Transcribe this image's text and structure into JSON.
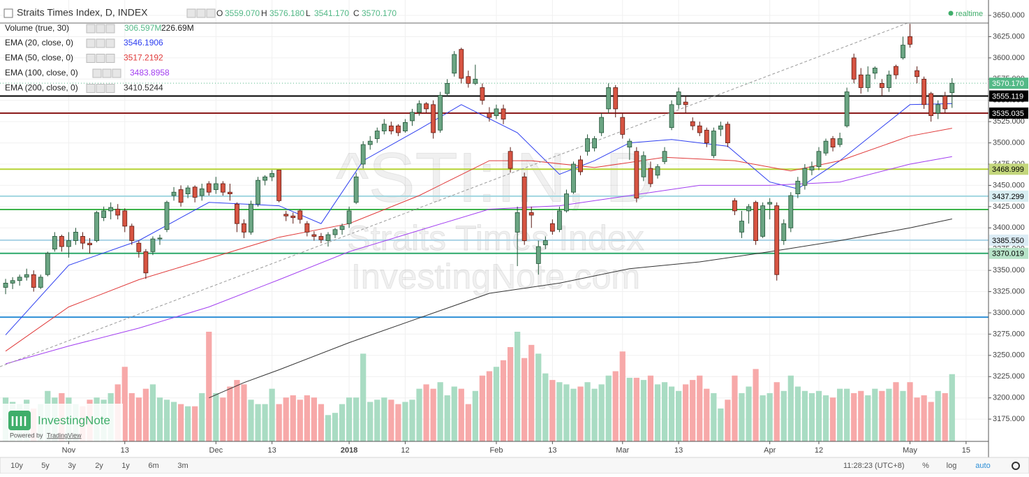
{
  "chart_data": {
    "type": "candlestick",
    "legend": {
      "title": "Straits Times Index, D, INDEX",
      "realtime": "realtime",
      "ohlc": [
        {
          "key": "O",
          "label": "3559.070"
        },
        {
          "key": "H",
          "label": "3576.180"
        },
        {
          "key": "L",
          "label": "3541.170"
        },
        {
          "key": "C",
          "label": "3570.170"
        }
      ],
      "ohlc_color": "#53b987"
    },
    "watermark": [
      "^STI:IN, D",
      "Straits Times Index",
      "InvestingNote.com"
    ],
    "logo": {
      "name": "InvestingNote",
      "powered_by": "Powered by",
      "link": "TradingView"
    },
    "xlim": [
      -0.8,
      140.2
    ],
    "xticks": [
      {
        "value": 9,
        "label": "Nov"
      },
      {
        "value": 17,
        "label": "13"
      },
      {
        "value": 30,
        "label": "Dec"
      },
      {
        "value": 38,
        "label": "13"
      },
      {
        "value": 49,
        "label": "2018"
      },
      {
        "value": 57,
        "label": "12"
      },
      {
        "value": 70,
        "label": "Feb"
      },
      {
        "value": 78,
        "label": "13"
      },
      {
        "value": 88,
        "label": "Mar"
      },
      {
        "value": 96,
        "label": "13"
      },
      {
        "value": 109,
        "label": "Apr"
      },
      {
        "value": 116,
        "label": "12"
      },
      {
        "value": 129,
        "label": "May"
      },
      {
        "value": 137,
        "label": "15"
      }
    ],
    "ylim": [
      3148.8,
      3668.1
    ],
    "yticks": [
      {
        "value": 3175,
        "label": "3175.000"
      },
      {
        "value": 3200,
        "label": "3200.000"
      },
      {
        "value": 3225,
        "label": "3225.000"
      },
      {
        "value": 3250,
        "label": "3250.000"
      },
      {
        "value": 3275,
        "label": "3275.000"
      },
      {
        "value": 3300,
        "label": "3300.000"
      },
      {
        "value": 3325,
        "label": "3325.000"
      },
      {
        "value": 3350,
        "label": "3350.000"
      },
      {
        "value": 3375,
        "label": "3375.000"
      },
      {
        "value": 3400,
        "label": "3400.000"
      },
      {
        "value": 3425,
        "label": "3425.000"
      },
      {
        "value": 3450,
        "label": "3450.000"
      },
      {
        "value": 3475,
        "label": "3475.000"
      },
      {
        "value": 3500,
        "label": "3500.000"
      },
      {
        "value": 3525,
        "label": "3525.000"
      },
      {
        "value": 3550,
        "label": "3550.000"
      },
      {
        "value": 3575,
        "label": "3575.000"
      },
      {
        "value": 3600,
        "label": "3600.000"
      },
      {
        "value": 3625,
        "label": "3625.000"
      },
      {
        "value": 3650,
        "label": "3650.000"
      }
    ],
    "grid": true,
    "up_color": "#6ba583",
    "up_border": "#225437",
    "down_color": "#d75442",
    "down_border": "#5b1a13",
    "open": [
      3330,
      3335,
      3338,
      3342,
      3345,
      3330,
      3345,
      3375,
      3390,
      3378,
      3385,
      3390,
      3382,
      3385,
      3412,
      3420,
      3422,
      3420,
      3402,
      3382,
      3372,
      3372,
      3387,
      3398,
      3438,
      3445,
      3440,
      3448,
      3438,
      3452,
      3445,
      3452,
      3442,
      3428,
      3405,
      3395,
      3428,
      3456,
      3460,
      3468,
      3416,
      3414,
      3420,
      3405,
      3392,
      3390,
      3385,
      3392,
      3398,
      3405,
      3430,
      3475,
      3498,
      3505,
      3514,
      3520,
      3520,
      3514,
      3526,
      3536,
      3546,
      3545,
      3515,
      3558,
      3582,
      3610,
      3578,
      3570,
      3565,
      3535,
      3532,
      3540,
      3490,
      3395,
      3460,
      3418,
      3358,
      3380,
      3405,
      3398,
      3420,
      3442,
      3480,
      3490,
      3494,
      3512,
      3540,
      3565,
      3530,
      3495,
      3490,
      3460,
      3470,
      3462,
      3478,
      3518,
      3545,
      3548,
      3525,
      3520,
      3515,
      3485,
      3516,
      3522,
      3432,
      3395,
      3420,
      3430,
      3390,
      3428,
      3426,
      3385,
      3400,
      3440,
      3450,
      3468,
      3472,
      3488,
      3505,
      3498,
      3520,
      3600,
      3580,
      3565,
      3582,
      3570,
      3565,
      3590,
      3600,
      3625,
      3585,
      3575,
      3558,
      3535,
      3555,
      3559.07
    ],
    "high": [
      3340,
      3342,
      3345,
      3352,
      3350,
      3345,
      3372,
      3395,
      3392,
      3395,
      3400,
      3395,
      3388,
      3420,
      3425,
      3430,
      3428,
      3423,
      3405,
      3385,
      3375,
      3390,
      3392,
      3432,
      3448,
      3450,
      3450,
      3450,
      3452,
      3455,
      3460,
      3455,
      3452,
      3430,
      3410,
      3432,
      3460,
      3462,
      3468,
      3468,
      3420,
      3418,
      3422,
      3408,
      3396,
      3394,
      3395,
      3400,
      3405,
      3425,
      3465,
      3502,
      3508,
      3518,
      3528,
      3525,
      3522,
      3528,
      3540,
      3550,
      3548,
      3550,
      3560,
      3575,
      3608,
      3612,
      3585,
      3592,
      3570,
      3542,
      3545,
      3545,
      3495,
      3425,
      3465,
      3425,
      3385,
      3390,
      3410,
      3425,
      3445,
      3478,
      3485,
      3510,
      3508,
      3535,
      3570,
      3568,
      3535,
      3505,
      3495,
      3490,
      3478,
      3475,
      3495,
      3550,
      3565,
      3555,
      3530,
      3525,
      3518,
      3518,
      3525,
      3525,
      3435,
      3420,
      3428,
      3432,
      3430,
      3435,
      3430,
      3410,
      3442,
      3460,
      3475,
      3478,
      3495,
      3505,
      3508,
      3512,
      3565,
      3605,
      3588,
      3590,
      3590,
      3575,
      3585,
      3592,
      3625,
      3640,
      3590,
      3578,
      3560,
      3550,
      3560,
      3576.18
    ],
    "low": [
      3322,
      3328,
      3332,
      3338,
      3325,
      3328,
      3343,
      3372,
      3372,
      3365,
      3380,
      3375,
      3370,
      3383,
      3408,
      3410,
      3410,
      3395,
      3380,
      3365,
      3340,
      3368,
      3380,
      3395,
      3432,
      3425,
      3435,
      3430,
      3432,
      3438,
      3440,
      3438,
      3432,
      3395,
      3388,
      3392,
      3425,
      3450,
      3455,
      3430,
      3408,
      3405,
      3405,
      3390,
      3385,
      3382,
      3378,
      3388,
      3392,
      3400,
      3428,
      3470,
      3492,
      3500,
      3510,
      3510,
      3508,
      3512,
      3520,
      3532,
      3535,
      3505,
      3512,
      3555,
      3578,
      3570,
      3565,
      3568,
      3545,
      3525,
      3528,
      3522,
      3465,
      3355,
      3380,
      3400,
      3345,
      3375,
      3392,
      3395,
      3418,
      3440,
      3462,
      3485,
      3490,
      3508,
      3535,
      3530,
      3505,
      3480,
      3430,
      3455,
      3448,
      3458,
      3475,
      3515,
      3540,
      3535,
      3515,
      3508,
      3495,
      3482,
      3508,
      3495,
      3415,
      3388,
      3405,
      3380,
      3388,
      3410,
      3338,
      3380,
      3395,
      3435,
      3445,
      3462,
      3468,
      3485,
      3490,
      3495,
      3518,
      3570,
      3558,
      3560,
      3575,
      3555,
      3560,
      3575,
      3598,
      3612,
      3570,
      3540,
      3525,
      3528,
      3535,
      3541.17
    ],
    "close": [
      3335,
      3338,
      3342,
      3345,
      3330,
      3342,
      3370,
      3390,
      3378,
      3385,
      3395,
      3382,
      3380,
      3418,
      3420,
      3424,
      3415,
      3402,
      3385,
      3372,
      3347,
      3387,
      3388,
      3430,
      3442,
      3430,
      3447,
      3436,
      3446,
      3442,
      3452,
      3442,
      3440,
      3405,
      3395,
      3428,
      3456,
      3460,
      3464,
      3432,
      3414,
      3412,
      3410,
      3395,
      3390,
      3386,
      3392,
      3398,
      3402,
      3420,
      3460,
      3498,
      3502,
      3514,
      3522,
      3514,
      3512,
      3524,
      3536,
      3546,
      3540,
      3512,
      3556,
      3570,
      3604,
      3576,
      3570,
      3575,
      3550,
      3530,
      3540,
      3528,
      3470,
      3418,
      3385,
      3415,
      3378,
      3385,
      3396,
      3420,
      3440,
      3475,
      3466,
      3505,
      3505,
      3530,
      3565,
      3540,
      3510,
      3502,
      3435,
      3485,
      3452,
      3472,
      3490,
      3545,
      3560,
      3545,
      3520,
      3512,
      3500,
      3514,
      3520,
      3500,
      3420,
      3408,
      3425,
      3385,
      3426,
      3430,
      3345,
      3405,
      3438,
      3455,
      3470,
      3472,
      3490,
      3502,
      3495,
      3505,
      3560,
      3575,
      3565,
      3580,
      3588,
      3565,
      3580,
      3580,
      3615,
      3616,
      3578,
      3545,
      3532,
      3545,
      3540,
      3570.17
    ],
    "volume": {
      "name": "Volume (true, 30)",
      "value_label": "306.597M",
      "ma_label": "226.69M",
      "label_colors": [
        "#53b987",
        "#222"
      ],
      "up_color": "#a9dcc3",
      "down_color": "#f7a9a9",
      "values": [
        200,
        180,
        170,
        190,
        150,
        170,
        230,
        200,
        220,
        200,
        170,
        160,
        190,
        200,
        190,
        220,
        260,
        340,
        220,
        200,
        240,
        260,
        200,
        190,
        180,
        170,
        160,
        160,
        220,
        500,
        220,
        200,
        250,
        280,
        260,
        190,
        170,
        170,
        240,
        170,
        200,
        210,
        190,
        210,
        200,
        170,
        120,
        130,
        170,
        200,
        200,
        400,
        180,
        190,
        200,
        190,
        170,
        180,
        190,
        240,
        260,
        240,
        270,
        210,
        250,
        240,
        170,
        230,
        300,
        320,
        340,
        370,
        430,
        500,
        380,
        440,
        400,
        310,
        280,
        270,
        260,
        240,
        250,
        270,
        240,
        260,
        300,
        320,
        410,
        290,
        290,
        280,
        300,
        260,
        270,
        250,
        230,
        260,
        280,
        300,
        240,
        220,
        150,
        190,
        300,
        220,
        250,
        330,
        210,
        220,
        270,
        230,
        300,
        250,
        230,
        220,
        230,
        210,
        200,
        240,
        240,
        220,
        230,
        210,
        240,
        230,
        240,
        270,
        230,
        270,
        200,
        210,
        180,
        230,
        220,
        306.597
      ]
    },
    "series": [
      {
        "name": "EMA (20, close, 0)",
        "color": "#2e3ff0",
        "last_label": "3546.1906",
        "x": [
          0,
          9,
          19,
          29,
          39,
          45,
          51,
          59,
          65,
          73,
          79,
          84,
          89,
          95,
          103,
          109,
          113,
          119,
          129,
          135
        ],
        "values": [
          3274,
          3356,
          3385,
          3430,
          3426,
          3405,
          3479,
          3516,
          3545,
          3512,
          3463,
          3479,
          3500,
          3504,
          3496,
          3454,
          3446,
          3479,
          3545,
          3546.1906
        ]
      },
      {
        "name": "EMA (50, close, 0)",
        "color": "#e03a3a",
        "last_label": "3517.2192",
        "x": [
          0,
          9,
          19,
          29,
          39,
          49,
          59,
          69,
          75,
          84,
          94,
          104,
          112,
          119,
          129,
          135
        ],
        "values": [
          3255,
          3307,
          3339,
          3364,
          3389,
          3405,
          3438,
          3479,
          3479,
          3471,
          3483,
          3479,
          3467,
          3479,
          3508,
          3517.2192
        ]
      },
      {
        "name": "EMA (100, close, 0)",
        "color": "#a23ef0",
        "last_label": "3483.8958",
        "x": [
          0,
          9,
          19,
          29,
          39,
          49,
          59,
          69,
          79,
          89,
          99,
          109,
          119,
          129,
          135
        ],
        "values": [
          3240,
          3261,
          3282,
          3307,
          3339,
          3372,
          3397,
          3422,
          3426,
          3438,
          3450,
          3450,
          3454,
          3475,
          3483.8958
        ]
      },
      {
        "name": "EMA (200, close, 0)",
        "color": "#333333",
        "last_label": "3410.5244",
        "x": [
          29,
          34,
          39,
          49,
          59,
          69,
          79,
          89,
          99,
          109,
          119,
          129,
          135
        ],
        "values": [
          3200,
          3218,
          3233,
          3265,
          3294,
          3323,
          3335,
          3352,
          3360,
          3372,
          3385,
          3400,
          3410.5244
        ]
      }
    ],
    "last_tag": {
      "value": 3570.17,
      "label": "3570.170",
      "color": "#53b987"
    },
    "levels": [
      {
        "value": 3555.119,
        "label": "3555.119",
        "color": "#000000",
        "tag_color": "#000000",
        "text_color": "#ffffff"
      },
      {
        "value": 3535.035,
        "label": "3535.035",
        "color": "#8b1a1a",
        "tag_color": "#000000",
        "text_color": "#ffffff"
      },
      {
        "value": 3468.999,
        "label": "3468.999",
        "color": "#b5d334",
        "tag_color": "#c3d67c",
        "text_color": "#000000"
      },
      {
        "value": 3437.299,
        "label": "3437.299",
        "color": "#a0d6e0",
        "tag_color": "#d8eef2",
        "text_color": "#000000"
      },
      {
        "value": 3421.6,
        "color": "#3cb34a"
      },
      {
        "value": 3385.55,
        "label": "3385.550",
        "color": "#a9d3e6",
        "tag_color": "#dcecf5",
        "text_color": "#000000"
      },
      {
        "value": 3370.019,
        "label": "3370.019",
        "color": "#2ca86a",
        "tag_color": "#b7e3c8",
        "text_color": "#000000"
      },
      {
        "value": 3295,
        "color": "#2e8fd6"
      }
    ],
    "toolbar": {
      "ranges": [
        "10y",
        "5y",
        "3y",
        "2y",
        "1y",
        "6m",
        "3m"
      ],
      "time": "11:28:23 (UTC+8)",
      "options": [
        "%",
        "log",
        "auto"
      ]
    }
  }
}
